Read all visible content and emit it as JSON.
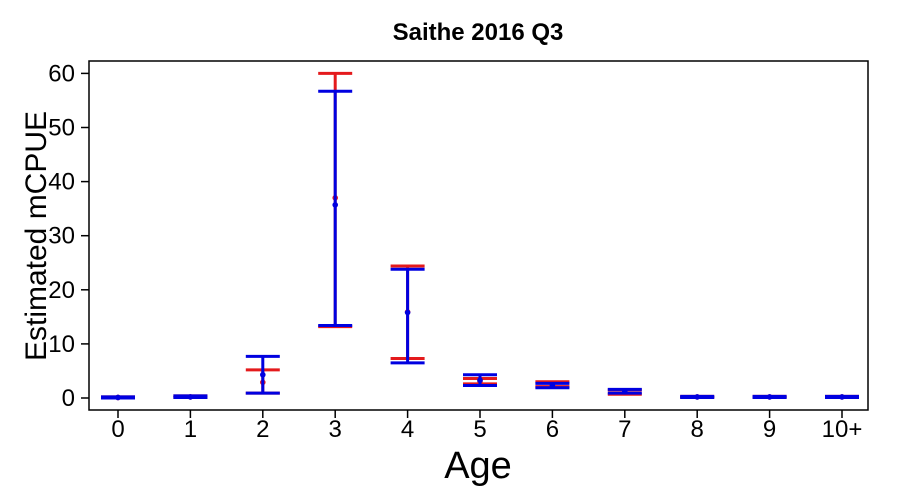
{
  "chart_data": {
    "type": "errorbar",
    "title": "Saithe 2016 Q3",
    "xlabel": "Age",
    "ylabel": "Estimated mCPUE",
    "categories": [
      "0",
      "1",
      "2",
      "3",
      "4",
      "5",
      "6",
      "7",
      "8",
      "9",
      "10+"
    ],
    "yticks": [
      0,
      10,
      20,
      30,
      40,
      50,
      60
    ],
    "ylim": [
      -2,
      62
    ],
    "grid": false,
    "colors": {
      "series1": "#e41a1c",
      "series2": "#0000e0"
    },
    "series": [
      {
        "color": "#e41a1c",
        "points": [
          {
            "x": "0",
            "y": 0.1,
            "low": 0.0,
            "high": 0.2
          },
          {
            "x": "1",
            "y": 0.2,
            "low": 0.1,
            "high": 0.4
          },
          {
            "x": "2",
            "y": 2.9,
            "low": 0.9,
            "high": 5.2
          },
          {
            "x": "3",
            "y": 37.0,
            "low": 13.2,
            "high": 60.0
          },
          {
            "x": "4",
            "y": 15.9,
            "low": 7.3,
            "high": 24.4
          },
          {
            "x": "5",
            "y": 3.1,
            "low": 2.6,
            "high": 3.6
          },
          {
            "x": "6",
            "y": 2.5,
            "low": 2.1,
            "high": 3.0
          },
          {
            "x": "7",
            "y": 1.1,
            "low": 0.7,
            "high": 1.5
          },
          {
            "x": "8",
            "y": 0.2,
            "low": 0.1,
            "high": 0.3
          },
          {
            "x": "9",
            "y": 0.2,
            "low": 0.1,
            "high": 0.3
          },
          {
            "x": "10+",
            "y": 0.2,
            "low": 0.1,
            "high": 0.3
          }
        ]
      },
      {
        "color": "#0000e0",
        "points": [
          {
            "x": "0",
            "y": 0.1,
            "low": 0.0,
            "high": 0.2
          },
          {
            "x": "1",
            "y": 0.2,
            "low": 0.1,
            "high": 0.4
          },
          {
            "x": "2",
            "y": 4.3,
            "low": 0.9,
            "high": 7.7
          },
          {
            "x": "3",
            "y": 35.7,
            "low": 13.4,
            "high": 56.7
          },
          {
            "x": "4",
            "y": 15.8,
            "low": 6.5,
            "high": 23.8
          },
          {
            "x": "5",
            "y": 3.3,
            "low": 2.3,
            "high": 4.3
          },
          {
            "x": "6",
            "y": 2.3,
            "low": 1.9,
            "high": 2.7
          },
          {
            "x": "7",
            "y": 1.2,
            "low": 0.9,
            "high": 1.6
          },
          {
            "x": "8",
            "y": 0.2,
            "low": 0.1,
            "high": 0.3
          },
          {
            "x": "9",
            "y": 0.2,
            "low": 0.1,
            "high": 0.3
          },
          {
            "x": "10+",
            "y": 0.2,
            "low": 0.1,
            "high": 0.3
          }
        ]
      }
    ]
  }
}
